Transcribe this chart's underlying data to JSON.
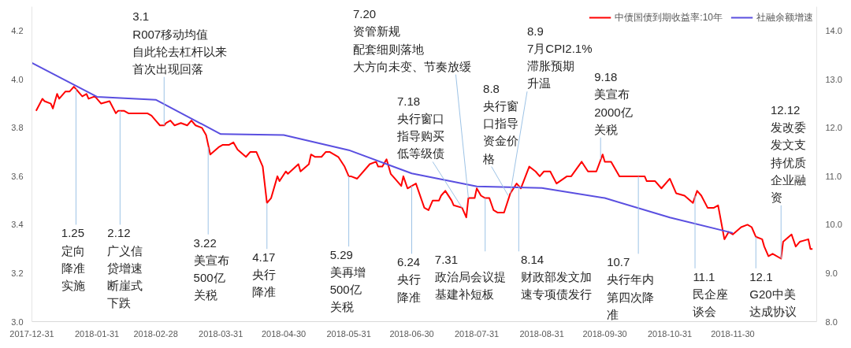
{
  "chart_data": {
    "type": "line",
    "xlim": [
      "2017-12-31",
      "2019-01-09"
    ],
    "xticks": [
      "2017-12-31",
      "2018-01-31",
      "2018-02-28",
      "2018-03-31",
      "2018-04-30",
      "2018-05-31",
      "2018-06-30",
      "2018-07-31",
      "2018-08-31",
      "2018-09-30",
      "2018-10-31",
      "2018-11-30"
    ],
    "ylim": [
      3.0,
      4.3
    ],
    "yticks": [
      {
        "value": 3.0,
        "label": "3.0"
      },
      {
        "value": 3.2,
        "label": "3.2"
      },
      {
        "value": 3.4,
        "label": "3.4"
      },
      {
        "value": 3.6,
        "label": "3.6"
      },
      {
        "value": 3.8,
        "label": "3.8"
      },
      {
        "value": 4.0,
        "label": "4.0"
      },
      {
        "value": 4.2,
        "label": "4.2"
      }
    ],
    "y2lim": [
      8.0,
      14.5
    ],
    "y2ticks": [
      {
        "value": 8,
        "label": "8.0"
      },
      {
        "value": 9,
        "label": "9.0"
      },
      {
        "value": 10,
        "label": "10.0"
      },
      {
        "value": 11,
        "label": "11.0"
      },
      {
        "value": 12,
        "label": "12.0"
      },
      {
        "value": 13,
        "label": "13.0"
      },
      {
        "value": 14,
        "label": "14.0"
      }
    ],
    "legend": "top right",
    "series": [
      {
        "name": "中债国债到期收益率:10年",
        "color": "#ff0000",
        "x": [
          "2018-01-02",
          "2018-01-05",
          "2018-01-06",
          "2018-01-09",
          "2018-01-10",
          "2018-01-12",
          "2018-01-13",
          "2018-01-16",
          "2018-01-18",
          "2018-01-20",
          "2018-01-21",
          "2018-01-24",
          "2018-01-26",
          "2018-01-27",
          "2018-01-30",
          "2018-02-02",
          "2018-02-06",
          "2018-02-09",
          "2018-02-10",
          "2018-02-13",
          "2018-02-15",
          "2018-02-24",
          "2018-02-26",
          "2018-02-28",
          "2018-03-02",
          "2018-03-04",
          "2018-03-05",
          "2018-03-07",
          "2018-03-09",
          "2018-03-12",
          "2018-03-15",
          "2018-03-17",
          "2018-03-19",
          "2018-03-22",
          "2018-03-24",
          "2018-03-25",
          "2018-03-26",
          "2018-03-30",
          "2018-04-01",
          "2018-04-04",
          "2018-04-06",
          "2018-04-08",
          "2018-04-12",
          "2018-04-14",
          "2018-04-17",
          "2018-04-20",
          "2018-04-22",
          "2018-04-24",
          "2018-04-27",
          "2018-04-28",
          "2018-05-01",
          "2018-05-02",
          "2018-05-07",
          "2018-05-08",
          "2018-05-12",
          "2018-05-13",
          "2018-05-15",
          "2018-05-18",
          "2018-05-20",
          "2018-05-22",
          "2018-05-26",
          "2018-05-29",
          "2018-05-31",
          "2018-06-01",
          "2018-06-04",
          "2018-06-10",
          "2018-06-13",
          "2018-06-14",
          "2018-06-16",
          "2018-06-18",
          "2018-06-20",
          "2018-06-22",
          "2018-06-25",
          "2018-06-26",
          "2018-06-28",
          "2018-07-02",
          "2018-07-06",
          "2018-07-08",
          "2018-07-10",
          "2018-07-13",
          "2018-07-14",
          "2018-07-16",
          "2018-07-19",
          "2018-07-20",
          "2018-07-24",
          "2018-07-26",
          "2018-07-27",
          "2018-07-30",
          "2018-07-31",
          "2018-08-02",
          "2018-08-04",
          "2018-08-06",
          "2018-08-08",
          "2018-08-10",
          "2018-08-13",
          "2018-08-16",
          "2018-08-19",
          "2018-08-21",
          "2018-08-25",
          "2018-08-28",
          "2018-08-30",
          "2018-09-01",
          "2018-09-04",
          "2018-09-07",
          "2018-09-12",
          "2018-09-14",
          "2018-09-19",
          "2018-09-22",
          "2018-09-26",
          "2018-09-29",
          "2018-09-30",
          "2018-10-03",
          "2018-10-07",
          "2018-10-19",
          "2018-10-20",
          "2018-10-24",
          "2018-10-27",
          "2018-10-31",
          "2018-11-03",
          "2018-11-07",
          "2018-11-11",
          "2018-11-13",
          "2018-11-15",
          "2018-11-18",
          "2018-11-21",
          "2018-11-23",
          "2018-11-26",
          "2018-11-28",
          "2018-11-30",
          "2018-12-04",
          "2018-12-07",
          "2018-12-09",
          "2018-12-11",
          "2018-12-14",
          "2018-12-15",
          "2018-12-17",
          "2018-12-19",
          "2018-12-23",
          "2018-12-24",
          "2018-12-28",
          "2018-12-30",
          "2019-01-01",
          "2019-01-05",
          "2019-01-06",
          "2019-01-07"
        ],
        "values": [
          3.87,
          3.92,
          3.91,
          3.9,
          3.88,
          3.94,
          3.92,
          3.95,
          3.95,
          3.97,
          3.96,
          3.93,
          3.94,
          3.92,
          3.93,
          3.9,
          3.91,
          3.86,
          3.87,
          3.87,
          3.86,
          3.86,
          3.85,
          3.83,
          3.81,
          3.81,
          3.82,
          3.83,
          3.81,
          3.82,
          3.81,
          3.83,
          3.81,
          3.8,
          3.77,
          3.73,
          3.69,
          3.72,
          3.73,
          3.73,
          3.74,
          3.71,
          3.68,
          3.7,
          3.7,
          3.64,
          3.49,
          3.51,
          3.6,
          3.58,
          3.62,
          3.61,
          3.65,
          3.62,
          3.65,
          3.69,
          3.68,
          3.68,
          3.7,
          3.7,
          3.68,
          3.64,
          3.6,
          3.6,
          3.59,
          3.65,
          3.66,
          3.64,
          3.64,
          3.67,
          3.61,
          3.59,
          3.56,
          3.6,
          3.55,
          3.57,
          3.47,
          3.46,
          3.5,
          3.5,
          3.52,
          3.54,
          3.5,
          3.48,
          3.47,
          3.43,
          3.51,
          3.51,
          3.55,
          3.52,
          3.51,
          3.51,
          3.46,
          3.45,
          3.45,
          3.53,
          3.57,
          3.55,
          3.64,
          3.62,
          3.6,
          3.62,
          3.62,
          3.57,
          3.6,
          3.6,
          3.66,
          3.62,
          3.62,
          3.69,
          3.66,
          3.66,
          3.6,
          3.6,
          3.58,
          3.58,
          3.55,
          3.59,
          3.53,
          3.52,
          3.49,
          3.54,
          3.52,
          3.47,
          3.47,
          3.48,
          3.34,
          3.37,
          3.36,
          3.39,
          3.4,
          3.39,
          3.35,
          3.34,
          3.31,
          3.27,
          3.28,
          3.26,
          3.33,
          3.36,
          3.31,
          3.33,
          3.34,
          3.3,
          3.3
        ]
      },
      {
        "name": "社融余额增速",
        "color": "#5a4fe0",
        "axis": "y2",
        "x": [
          "2017-12-31",
          "2018-01-31",
          "2018-02-28",
          "2018-03-31",
          "2018-04-30",
          "2018-05-31",
          "2018-06-30",
          "2018-07-31",
          "2018-08-31",
          "2018-09-30",
          "2018-10-31",
          "2018-11-30"
        ],
        "values": [
          13.34,
          12.64,
          12.58,
          11.87,
          11.85,
          11.54,
          11.06,
          10.79,
          10.76,
          10.55,
          10.15,
          9.83
        ]
      }
    ],
    "annotations": [
      {
        "text": "1.25定向降准实施",
        "x": "2018-01-21",
        "y": 3.96
      },
      {
        "text": "2.12广义信贷增速断崖式下跌",
        "x": "2018-02-11",
        "y": 3.87
      },
      {
        "text": "3.1R007移动均值自此轮去杠杆以来首次出现回落",
        "x": "2018-03-04",
        "y": 3.81
      },
      {
        "text": "3.22美宣布500亿关税",
        "x": "2018-03-25",
        "y": 3.72
      },
      {
        "text": "4.17央行降准",
        "x": "2018-04-22",
        "y": 3.49
      },
      {
        "text": "5.29美再增500亿关税",
        "x": "2018-05-31",
        "y": 3.6
      },
      {
        "text": "7.20资管新规配套细则落地大方向未变、节奏放缓",
        "x": "2018-07-27",
        "y": 3.51
      },
      {
        "text": "7.18央行窗口指导购买低等级债",
        "x": "2018-07-24",
        "y": 3.47
      },
      {
        "text": "6.24央行降准",
        "x": "2018-06-30",
        "y": 3.56
      },
      {
        "text": "7.31政治局会议提基建补短板",
        "x": "2018-08-04",
        "y": 3.51
      },
      {
        "text": "8.8央行窗口指导资金价格",
        "x": "2018-08-15",
        "y": 3.52
      },
      {
        "text": "8.97月CPI2.1%滞胀预期升温",
        "x": "2018-08-16",
        "y": 3.53
      },
      {
        "text": "8.14财政部发文加速专项债发行",
        "x": "2018-08-20",
        "y": 3.56
      },
      {
        "text": "9.18美宣布2000亿关税",
        "x": "2018-09-28",
        "y": 3.67
      },
      {
        "text": "10.7央行年内第四次降准",
        "x": "2018-10-16",
        "y": 3.6
      },
      {
        "text": "11.1民企座谈会",
        "x": "2018-11-12",
        "y": 3.52
      },
      {
        "text": "12.1G20中美达成协议",
        "x": "2018-12-11",
        "y": 3.35
      },
      {
        "text": "12.12发改委发文支持优质企业融资",
        "x": "2018-12-23",
        "y": 3.26
      }
    ]
  }
}
